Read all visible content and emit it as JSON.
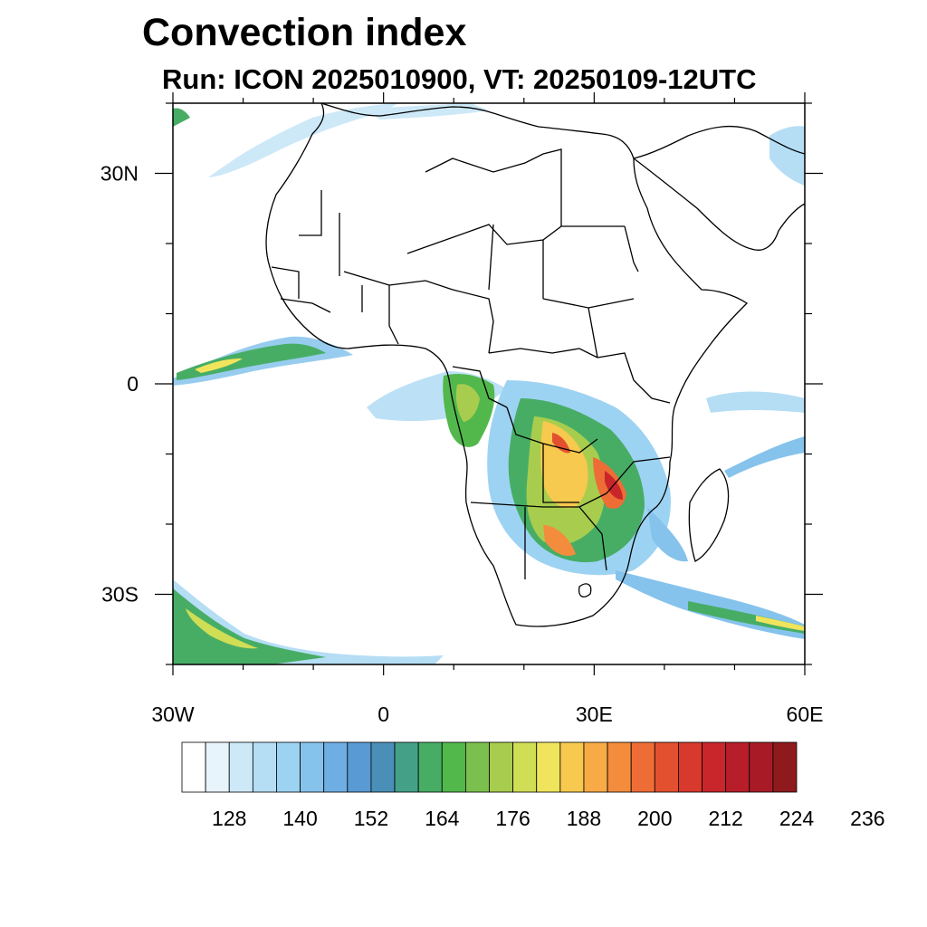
{
  "title": "Convection index",
  "subtitle": "Run: ICON 2025010900,  VT: 20250109-12UTC",
  "map": {
    "lat_labels": [
      {
        "lat": 30,
        "text": "30N"
      },
      {
        "lat": 0,
        "text": "0"
      },
      {
        "lat": -30,
        "text": "30S"
      }
    ],
    "lon_labels": [
      {
        "lon": -30,
        "text": "30W"
      },
      {
        "lon": 0,
        "text": "0"
      },
      {
        "lon": 30,
        "text": "30E"
      },
      {
        "lon": 60,
        "text": "60E"
      }
    ],
    "extent": {
      "lon": [
        -30,
        60
      ],
      "lat": [
        -40,
        40
      ]
    }
  },
  "colorbar": {
    "colors": [
      "#ffffff",
      "#e8f4fc",
      "#cde9f8",
      "#b5def5",
      "#9dd3f2",
      "#85c3ec",
      "#6eaee3",
      "#5a9ad4",
      "#4a8fb8",
      "#44a187",
      "#47ad65",
      "#52b84c",
      "#7bc04e",
      "#a8cd4e",
      "#d0de55",
      "#f0e45c",
      "#f7c94e",
      "#f7aa45",
      "#f48c3d",
      "#ee6d36",
      "#e3502f",
      "#d8392d",
      "#c9262c",
      "#b81e2a",
      "#a81b26",
      "#8f1a1e"
    ],
    "tick_labels": [
      "128",
      "140",
      "152",
      "164",
      "176",
      "188",
      "200",
      "212",
      "224",
      "236"
    ]
  }
}
